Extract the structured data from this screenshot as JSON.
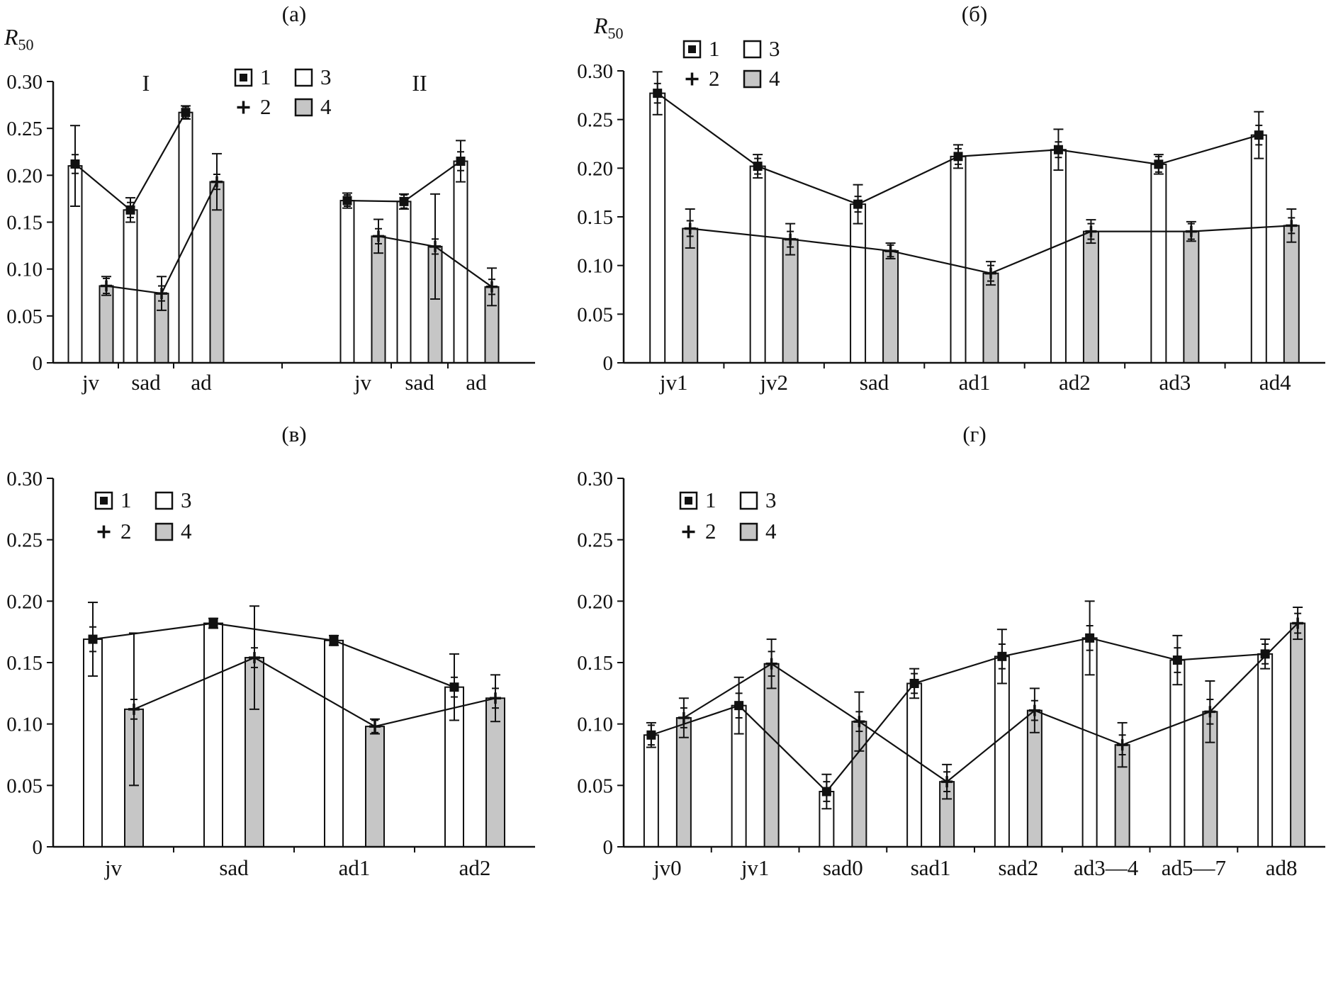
{
  "figure": {
    "background": "#ffffff",
    "ink": "#111111",
    "gray_fill": "#c6c6c6",
    "white_fill": "#ffffff"
  },
  "legend": {
    "items": [
      {
        "label": "1",
        "icon": "filled-square-marker"
      },
      {
        "label": "2",
        "icon": "plus-marker"
      },
      {
        "label": "3",
        "icon": "white-bar"
      },
      {
        "label": "4",
        "icon": "gray-bar"
      }
    ]
  },
  "chart_data": [
    {
      "panel": "(а)",
      "type": "bar",
      "ylabel_base": "R",
      "ylabel_sub": "50",
      "ylim": [
        0,
        0.3
      ],
      "yticks": [
        0,
        0.05,
        0.1,
        0.15,
        0.2,
        0.25,
        0.3
      ],
      "ytick_labels": [
        "0",
        "0.05",
        "0.10",
        "0.15",
        "0.20",
        "0.25",
        "0.30"
      ],
      "categories": [
        "jv",
        "sad",
        "ad",
        "jv",
        "sad",
        "ad"
      ],
      "groups": [
        {
          "label": "I",
          "start": 0,
          "end": 2
        },
        {
          "label": "II",
          "start": 3,
          "end": 5
        }
      ],
      "series": [
        {
          "name": "1",
          "role": "line",
          "marker": "filled-square",
          "values": [
            0.212,
            0.163,
            0.267,
            0.173,
            0.172,
            0.215
          ],
          "err": [
            0.01,
            0.008,
            0.006,
            0.006,
            0.007,
            0.01
          ]
        },
        {
          "name": "2",
          "role": "line",
          "marker": "plus",
          "values": [
            0.082,
            0.074,
            0.193,
            0.135,
            0.124,
            0.081
          ],
          "err": [
            0.008,
            0.008,
            0.008,
            0.008,
            0.008,
            0.008
          ]
        },
        {
          "name": "3",
          "role": "bar",
          "fill": "#ffffff",
          "values": [
            0.21,
            0.163,
            0.267,
            0.173,
            0.172,
            0.215
          ],
          "err": [
            0.043,
            0.013,
            0.007,
            0.008,
            0.008,
            0.022
          ]
        },
        {
          "name": "4",
          "role": "bar",
          "fill": "#c6c6c6",
          "values": [
            0.082,
            0.074,
            0.193,
            0.135,
            0.124,
            0.081
          ],
          "err": [
            0.01,
            0.018,
            0.03,
            0.018,
            0.056,
            0.02
          ]
        }
      ]
    },
    {
      "panel": "(б)",
      "type": "bar",
      "ylabel_base": "R",
      "ylabel_sub": "50",
      "ylim": [
        0,
        0.3
      ],
      "yticks": [
        0,
        0.05,
        0.1,
        0.15,
        0.2,
        0.25,
        0.3
      ],
      "ytick_labels": [
        "0",
        "0.05",
        "0.10",
        "0.15",
        "0.20",
        "0.25",
        "0.30"
      ],
      "categories": [
        "jv1",
        "jv2",
        "sad",
        "ad1",
        "ad2",
        "ad3",
        "ad4"
      ],
      "series": [
        {
          "name": "1",
          "role": "line",
          "marker": "filled-square",
          "values": [
            0.277,
            0.202,
            0.163,
            0.212,
            0.219,
            0.204,
            0.234
          ],
          "err": [
            0.01,
            0.008,
            0.008,
            0.008,
            0.008,
            0.008,
            0.01
          ]
        },
        {
          "name": "2",
          "role": "line",
          "marker": "plus",
          "values": [
            0.138,
            0.127,
            0.115,
            0.092,
            0.135,
            0.135,
            0.141
          ],
          "err": [
            0.008,
            0.008,
            0.006,
            0.008,
            0.008,
            0.008,
            0.008
          ]
        },
        {
          "name": "3",
          "role": "bar",
          "fill": "#ffffff",
          "values": [
            0.277,
            0.202,
            0.163,
            0.212,
            0.219,
            0.204,
            0.234
          ],
          "err": [
            0.022,
            0.012,
            0.02,
            0.012,
            0.021,
            0.01,
            0.024
          ]
        },
        {
          "name": "4",
          "role": "bar",
          "fill": "#c6c6c6",
          "values": [
            0.138,
            0.127,
            0.115,
            0.092,
            0.135,
            0.135,
            0.141
          ],
          "err": [
            0.02,
            0.016,
            0.008,
            0.012,
            0.012,
            0.01,
            0.017
          ]
        }
      ]
    },
    {
      "panel": "(в)",
      "type": "bar",
      "ylim": [
        0,
        0.3
      ],
      "yticks": [
        0,
        0.05,
        0.1,
        0.15,
        0.2,
        0.25,
        0.3
      ],
      "ytick_labels": [
        "0",
        "0.05",
        "0.10",
        "0.15",
        "0.20",
        "0.25",
        "0.30"
      ],
      "categories": [
        "jv",
        "sad",
        "ad1",
        "ad2"
      ],
      "series": [
        {
          "name": "1",
          "role": "line",
          "marker": "filled-square",
          "values": [
            0.169,
            0.182,
            0.168,
            0.13
          ],
          "err": [
            0.01,
            0.004,
            0.004,
            0.008
          ]
        },
        {
          "name": "2",
          "role": "line",
          "marker": "plus",
          "values": [
            0.112,
            0.154,
            0.098,
            0.121
          ],
          "err": [
            0.008,
            0.008,
            0.005,
            0.008
          ]
        },
        {
          "name": "3",
          "role": "bar",
          "fill": "#ffffff",
          "values": [
            0.169,
            0.182,
            0.168,
            0.13
          ],
          "err": [
            0.03,
            0.004,
            0.004,
            0.027
          ]
        },
        {
          "name": "4",
          "role": "bar",
          "fill": "#c6c6c6",
          "values": [
            0.112,
            0.154,
            0.098,
            0.121
          ],
          "err": [
            0.062,
            0.042,
            0.006,
            0.019
          ]
        }
      ]
    },
    {
      "panel": "(г)",
      "type": "bar",
      "ylim": [
        0,
        0.3
      ],
      "yticks": [
        0,
        0.05,
        0.1,
        0.15,
        0.2,
        0.25,
        0.3
      ],
      "ytick_labels": [
        "0",
        "0.05",
        "0.10",
        "0.15",
        "0.20",
        "0.25",
        "0.30"
      ],
      "categories": [
        "jv0",
        "jv1",
        "sad0",
        "sad1",
        "sad2",
        "ad3—4",
        "ad5—7",
        "ad8"
      ],
      "series": [
        {
          "name": "1",
          "role": "line",
          "marker": "filled-square",
          "values": [
            0.091,
            0.115,
            0.045,
            0.133,
            0.155,
            0.17,
            0.152,
            0.157
          ],
          "err": [
            0.008,
            0.01,
            0.008,
            0.008,
            0.01,
            0.01,
            0.01,
            0.008
          ]
        },
        {
          "name": "2",
          "role": "line",
          "marker": "plus",
          "values": [
            0.105,
            0.149,
            0.102,
            0.053,
            0.111,
            0.083,
            0.11,
            0.182
          ],
          "err": [
            0.008,
            0.01,
            0.008,
            0.008,
            0.008,
            0.008,
            0.01,
            0.008
          ]
        },
        {
          "name": "3",
          "role": "bar",
          "fill": "#ffffff",
          "values": [
            0.091,
            0.115,
            0.045,
            0.133,
            0.155,
            0.17,
            0.152,
            0.157
          ],
          "err": [
            0.01,
            0.023,
            0.014,
            0.012,
            0.022,
            0.03,
            0.02,
            0.012
          ]
        },
        {
          "name": "4",
          "role": "bar",
          "fill": "#c6c6c6",
          "values": [
            0.105,
            0.149,
            0.102,
            0.053,
            0.111,
            0.083,
            0.11,
            0.182
          ],
          "err": [
            0.016,
            0.02,
            0.024,
            0.014,
            0.018,
            0.018,
            0.025,
            0.013
          ]
        }
      ]
    }
  ]
}
